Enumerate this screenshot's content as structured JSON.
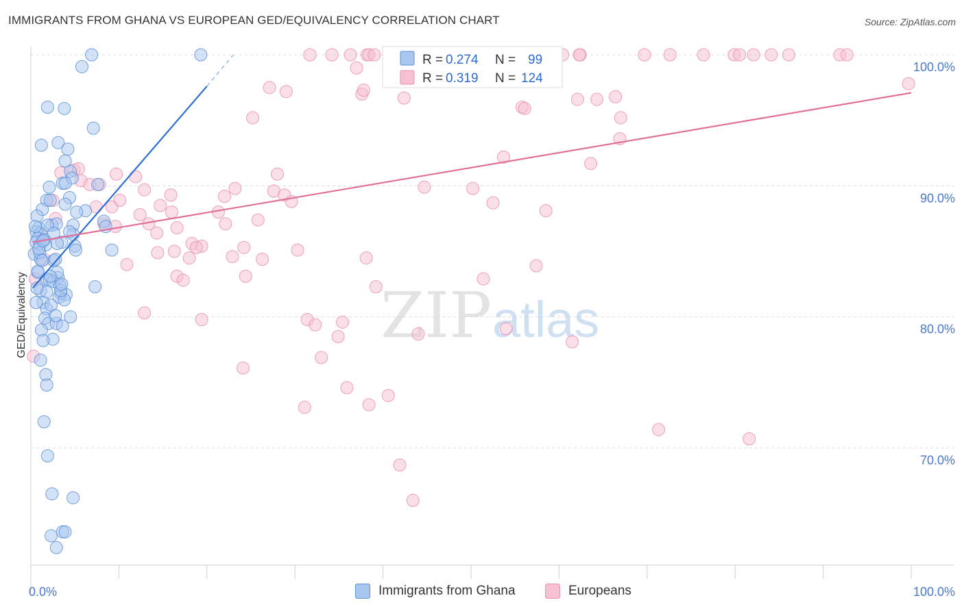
{
  "title": "IMMIGRANTS FROM GHANA VS EUROPEAN GED/EQUIVALENCY CORRELATION CHART",
  "source": "Source: ZipAtlas.com",
  "watermark": {
    "zip": "ZIP",
    "atlas": "atlas"
  },
  "colors": {
    "blue_fill": "#a9c6ef",
    "blue_stroke": "#5b8fd8",
    "blue_line": "#2a6fd1",
    "pink_fill": "#f6bfd2",
    "pink_stroke": "#e98fb0",
    "pink_line": "#e07099",
    "axis_text": "#4a78c8",
    "grid": "#dddddd"
  },
  "legend_box": {
    "rows": [
      {
        "r_label": "R =",
        "r_value": "0.274",
        "n_label": "N =",
        "n_value": "99"
      },
      {
        "r_label": "R =",
        "r_value": "0.319",
        "n_label": "N =",
        "n_value": "124"
      }
    ]
  },
  "chart_data": {
    "type": "scatter",
    "title": "IMMIGRANTS FROM GHANA VS EUROPEAN GED/EQUIVALENCY CORRELATION CHART",
    "xlabel": "",
    "ylabel": "GED/Equivalency",
    "xlim": [
      0,
      100
    ],
    "ylim": [
      60,
      101.5
    ],
    "x_tick_labels": [
      "0.0%",
      "100.0%"
    ],
    "y_ticks": [
      70,
      80,
      90,
      100
    ],
    "y_tick_labels": [
      "70.0%",
      "80.0%",
      "90.0%",
      "100.0%"
    ],
    "grid": true,
    "legend_position": "top-center",
    "series": [
      {
        "name": "Immigrants from Ghana",
        "r": 0.274,
        "n": 99,
        "trend": {
          "x": [
            0.2,
            20
          ],
          "y": [
            82.2,
            97.6
          ],
          "dashed_to": {
            "x": 23,
            "y": 100.0
          }
        },
        "points": [
          [
            6.9,
            100
          ],
          [
            19.3,
            100
          ],
          [
            5.8,
            99.1
          ],
          [
            1.9,
            96
          ],
          [
            3.8,
            95.9
          ],
          [
            7.1,
            94.4
          ],
          [
            3.1,
            93.3
          ],
          [
            1.2,
            93.1
          ],
          [
            4.2,
            92.8
          ],
          [
            3.9,
            91.9
          ],
          [
            4.5,
            91.1
          ],
          [
            4.7,
            90.6
          ],
          [
            3.6,
            90.2
          ],
          [
            7.6,
            90.1
          ],
          [
            3.9,
            90.2
          ],
          [
            2.1,
            89.9
          ],
          [
            1.8,
            88.9
          ],
          [
            4.4,
            89.1
          ],
          [
            2.2,
            88.9
          ],
          [
            3.9,
            88.6
          ],
          [
            6.2,
            88.1
          ],
          [
            1.3,
            88.2
          ],
          [
            0.7,
            87.7
          ],
          [
            8.3,
            87.3
          ],
          [
            8.5,
            86.9
          ],
          [
            2.4,
            87.0
          ],
          [
            4.8,
            87.0
          ],
          [
            0.9,
            86.8
          ],
          [
            0.6,
            86.5
          ],
          [
            1.1,
            86.4
          ],
          [
            0.8,
            86.0
          ],
          [
            1.5,
            85.9
          ],
          [
            4.8,
            86.3
          ],
          [
            3.5,
            85.7
          ],
          [
            0.6,
            85.7
          ],
          [
            1.0,
            85.5
          ],
          [
            5.0,
            85.4
          ],
          [
            1.7,
            85.5
          ],
          [
            5.1,
            85.1
          ],
          [
            9.2,
            85.1
          ],
          [
            0.4,
            84.8
          ],
          [
            1.1,
            84.4
          ],
          [
            2.6,
            84.3
          ],
          [
            0.8,
            83.4
          ],
          [
            3.1,
            83.0
          ],
          [
            3.0,
            83.4
          ],
          [
            1.8,
            82.9
          ],
          [
            2.1,
            82.8
          ],
          [
            2.5,
            82.7
          ],
          [
            3.3,
            82.4
          ],
          [
            7.3,
            82.3
          ],
          [
            1.1,
            82.0
          ],
          [
            1.8,
            81.9
          ],
          [
            3.4,
            81.8
          ],
          [
            4.0,
            81.7
          ],
          [
            3.2,
            81.5
          ],
          [
            1.4,
            81.1
          ],
          [
            3.8,
            81.3
          ],
          [
            1.8,
            80.6
          ],
          [
            4.5,
            80.0
          ],
          [
            1.6,
            79.9
          ],
          [
            2.0,
            79.5
          ],
          [
            2.9,
            79.5
          ],
          [
            3.6,
            79.3
          ],
          [
            1.2,
            79.0
          ],
          [
            2.5,
            78.3
          ],
          [
            1.4,
            78.2
          ],
          [
            1.1,
            76.7
          ],
          [
            1.7,
            75.6
          ],
          [
            1.8,
            74.8
          ],
          [
            1.5,
            72.0
          ],
          [
            1.9,
            69.4
          ],
          [
            2.4,
            66.5
          ],
          [
            4.8,
            66.2
          ],
          [
            2.3,
            63.3
          ],
          [
            3.6,
            63.6
          ],
          [
            3.9,
            63.6
          ],
          [
            2.9,
            62.4
          ],
          [
            2.3,
            80.9
          ],
          [
            0.6,
            81.1
          ],
          [
            1.5,
            85.9
          ],
          [
            2.8,
            84.4
          ],
          [
            0.5,
            86.9
          ],
          [
            1.0,
            84.9
          ],
          [
            3.4,
            82.0
          ],
          [
            2.8,
            80.1
          ],
          [
            0.8,
            83.5
          ],
          [
            2.9,
            87.1
          ],
          [
            3.5,
            82.5
          ],
          [
            4.4,
            86.5
          ],
          [
            1.3,
            84.3
          ],
          [
            0.9,
            85.2
          ],
          [
            2.2,
            83.1
          ],
          [
            3.0,
            85.6
          ],
          [
            1.9,
            87.0
          ],
          [
            5.2,
            88.0
          ],
          [
            2.6,
            86.4
          ],
          [
            0.7,
            82.2
          ],
          [
            1.4,
            85.8
          ]
        ]
      },
      {
        "name": "Europeans",
        "r": 0.319,
        "n": 124,
        "trend": {
          "x": [
            0.2,
            100
          ],
          "y": [
            85.7,
            97.1
          ]
        },
        "points": [
          [
            31.7,
            100
          ],
          [
            34.2,
            100
          ],
          [
            36.3,
            100
          ],
          [
            38.2,
            100
          ],
          [
            38.4,
            100
          ],
          [
            39.0,
            100
          ],
          [
            40.9,
            100
          ],
          [
            41.8,
            100
          ],
          [
            43.0,
            100
          ],
          [
            44.7,
            100
          ],
          [
            45.8,
            100
          ],
          [
            48.1,
            100
          ],
          [
            49.9,
            100
          ],
          [
            51.0,
            100
          ],
          [
            52.1,
            100
          ],
          [
            54.2,
            100
          ],
          [
            56.1,
            100
          ],
          [
            58.9,
            100
          ],
          [
            60.4,
            100
          ],
          [
            62.4,
            100
          ],
          [
            62.3,
            100
          ],
          [
            69.7,
            100
          ],
          [
            72.6,
            100
          ],
          [
            76.4,
            100
          ],
          [
            79.9,
            100
          ],
          [
            80.5,
            100
          ],
          [
            82.1,
            100
          ],
          [
            84.1,
            100
          ],
          [
            86.1,
            100
          ],
          [
            91.9,
            100
          ],
          [
            92.7,
            100
          ],
          [
            37.0,
            99.0
          ],
          [
            27.1,
            97.5
          ],
          [
            29.0,
            97.2
          ],
          [
            37.6,
            97.0
          ],
          [
            37.8,
            97.3
          ],
          [
            42.4,
            96.7
          ],
          [
            55.8,
            96.0
          ],
          [
            56.1,
            95.9
          ],
          [
            62.1,
            96.6
          ],
          [
            64.3,
            96.6
          ],
          [
            25.2,
            95.2
          ],
          [
            67.0,
            95.2
          ],
          [
            66.4,
            96.8
          ],
          [
            99.7,
            97.8
          ],
          [
            66.9,
            93.6
          ],
          [
            53.7,
            92.2
          ],
          [
            63.6,
            91.7
          ],
          [
            4.9,
            91.2
          ],
          [
            5.4,
            91.3
          ],
          [
            3.4,
            91.0
          ],
          [
            9.7,
            90.9
          ],
          [
            11.9,
            90.7
          ],
          [
            28.0,
            90.9
          ],
          [
            5.7,
            90.4
          ],
          [
            6.7,
            90.1
          ],
          [
            7.8,
            90.1
          ],
          [
            12.9,
            89.7
          ],
          [
            23.2,
            89.8
          ],
          [
            27.6,
            89.6
          ],
          [
            28.8,
            89.3
          ],
          [
            44.7,
            89.9
          ],
          [
            50.2,
            89.8
          ],
          [
            10.1,
            88.9
          ],
          [
            15.9,
            89.3
          ],
          [
            22.0,
            89.2
          ],
          [
            52.5,
            88.7
          ],
          [
            29.6,
            88.8
          ],
          [
            9.2,
            88.4
          ],
          [
            14.7,
            88.5
          ],
          [
            7.4,
            88.4
          ],
          [
            12.4,
            87.8
          ],
          [
            16.0,
            88.0
          ],
          [
            21.3,
            88.0
          ],
          [
            58.5,
            88.1
          ],
          [
            8.3,
            87.1
          ],
          [
            13.4,
            87.1
          ],
          [
            22.1,
            87.1
          ],
          [
            25.8,
            87.4
          ],
          [
            14.3,
            86.4
          ],
          [
            9.6,
            86.9
          ],
          [
            16.6,
            86.8
          ],
          [
            18.3,
            85.6
          ],
          [
            19.4,
            85.4
          ],
          [
            18.8,
            85.3
          ],
          [
            24.2,
            85.3
          ],
          [
            16.3,
            85.0
          ],
          [
            14.4,
            84.9
          ],
          [
            30.3,
            85.1
          ],
          [
            22.9,
            84.6
          ],
          [
            26.3,
            84.4
          ],
          [
            10.9,
            84.0
          ],
          [
            18.0,
            84.5
          ],
          [
            38.1,
            84.5
          ],
          [
            57.4,
            83.9
          ],
          [
            16.6,
            83.1
          ],
          [
            17.3,
            82.8
          ],
          [
            24.4,
            83.1
          ],
          [
            51.4,
            82.9
          ],
          [
            39.2,
            82.3
          ],
          [
            12.9,
            80.3
          ],
          [
            19.4,
            79.8
          ],
          [
            31.4,
            79.8
          ],
          [
            32.3,
            79.4
          ],
          [
            35.4,
            79.6
          ],
          [
            34.9,
            78.5
          ],
          [
            44.0,
            78.7
          ],
          [
            54.0,
            79.1
          ],
          [
            61.5,
            78.1
          ],
          [
            33.0,
            76.9
          ],
          [
            24.1,
            76.1
          ],
          [
            35.9,
            74.6
          ],
          [
            40.6,
            74.0
          ],
          [
            38.4,
            73.3
          ],
          [
            31.1,
            73.1
          ],
          [
            71.3,
            71.4
          ],
          [
            81.6,
            70.7
          ],
          [
            41.9,
            68.7
          ],
          [
            43.4,
            66.0
          ],
          [
            0.3,
            77.0
          ],
          [
            0.5,
            82.9
          ],
          [
            1.5,
            84.4
          ],
          [
            2.5,
            88.9
          ],
          [
            2.8,
            87.5
          ]
        ]
      }
    ]
  },
  "bottom_legend": [
    {
      "label": "Immigrants from Ghana"
    },
    {
      "label": "Europeans"
    }
  ]
}
